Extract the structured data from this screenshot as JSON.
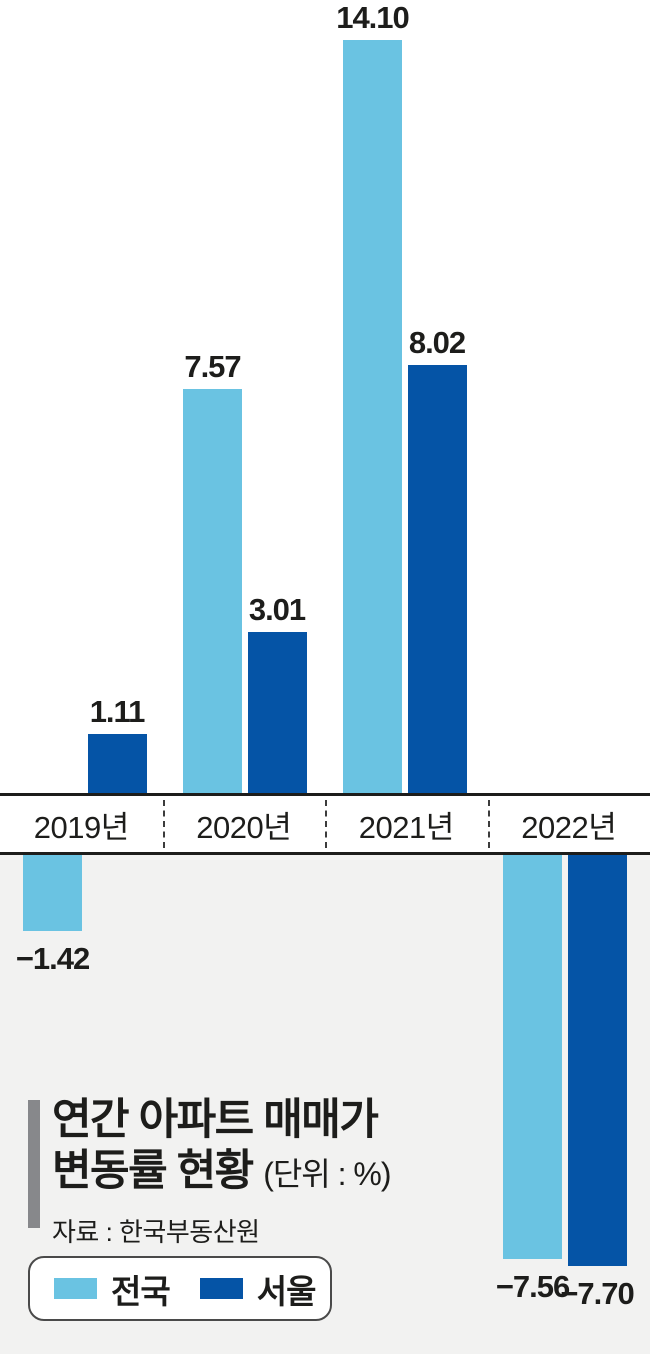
{
  "title": {
    "line1": "연간 아파트 매매가",
    "line2": "변동률 현황",
    "unit_note": "(단위 : %)",
    "source": "자료 : 한국부동산원"
  },
  "legend": {
    "items": [
      {
        "label": "전국",
        "color": "#6ac3e2"
      },
      {
        "label": "서울",
        "color": "#0554a6"
      }
    ]
  },
  "colors": {
    "national_bar": "#6ac3e2",
    "seoul_bar": "#0554a6",
    "text": "#1d1d1b",
    "negative_region_background": "#f2f2f1",
    "axis_line": "#1d1d1b"
  },
  "chart_data": {
    "type": "bar",
    "title": "연간 아파트 매매가 변동률 현황",
    "unit": "%",
    "source": "자료 : 한국부동산원",
    "categories": [
      "2019년",
      "2020년",
      "2021년",
      "2022년"
    ],
    "series": [
      {
        "name": "전국",
        "color": "#6ac3e2",
        "values": [
          -1.42,
          7.57,
          14.1,
          -7.56
        ],
        "labels": [
          "−1.42",
          "7.57",
          "14.10",
          "−7.56"
        ]
      },
      {
        "name": "서울",
        "color": "#0554a6",
        "values": [
          1.11,
          3.01,
          8.02,
          -7.7
        ],
        "labels": [
          "1.11",
          "3.01",
          "8.02",
          "−7.70"
        ]
      }
    ],
    "ylim": [
      -8.5,
      14.5
    ],
    "grid": false,
    "legend_position": "bottom-left",
    "value_labels_shown": true,
    "axis_labels_in_band": true
  }
}
